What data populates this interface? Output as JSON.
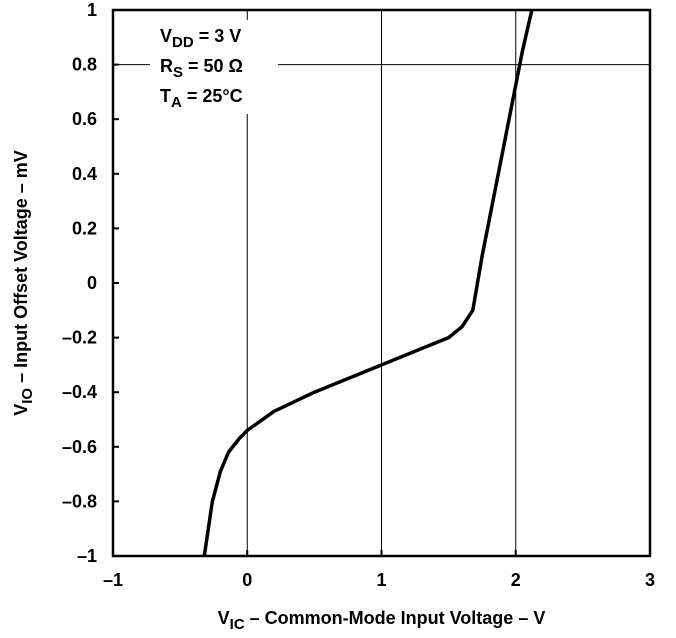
{
  "chart_data": {
    "type": "line",
    "x_label": {
      "main": "V",
      "sub": "IC",
      "rest": " – Common-Mode Input Voltage – V"
    },
    "y_label": {
      "main": "V",
      "sub": "IO",
      "rest": " – Input Offset Voltage – mV"
    },
    "annotations": [
      {
        "main": "V",
        "sub": "DD",
        "rest": " = 3 V"
      },
      {
        "main": "R",
        "sub": "S",
        "rest": " = 50 Ω"
      },
      {
        "main": "T",
        "sub": "A",
        "rest": " = 25°C"
      }
    ],
    "xlim": [
      -1,
      3
    ],
    "ylim": [
      -1,
      1
    ],
    "xticks": [
      {
        "value": -1,
        "label": "–1"
      },
      0,
      1,
      2,
      3
    ],
    "yticks": [
      {
        "value": -1,
        "label": "–1"
      },
      {
        "value": -0.8,
        "label": "–0.8"
      },
      {
        "value": -0.6,
        "label": "–0.6"
      },
      {
        "value": -0.4,
        "label": "–0.4"
      },
      {
        "value": -0.2,
        "label": "–0.2"
      },
      0,
      0.2,
      0.4,
      0.6,
      0.8,
      1
    ],
    "x_grid": true,
    "y_grid_values": [
      0.8
    ],
    "series": [
      {
        "color": "#000000",
        "x": [
          -0.32,
          -0.26,
          -0.2,
          -0.14,
          -0.06,
          0,
          0.2,
          0.5,
          0.8,
          1.0,
          1.3,
          1.5,
          1.6,
          1.68,
          1.75,
          1.85,
          1.95,
          2.05,
          2.12
        ],
        "values": [
          -1,
          -0.8,
          -0.69,
          -0.62,
          -0.57,
          -0.54,
          -0.47,
          -0.4,
          -0.34,
          -0.3,
          -0.24,
          -0.2,
          -0.16,
          -0.1,
          0.1,
          0.35,
          0.6,
          0.85,
          1
        ]
      }
    ]
  }
}
